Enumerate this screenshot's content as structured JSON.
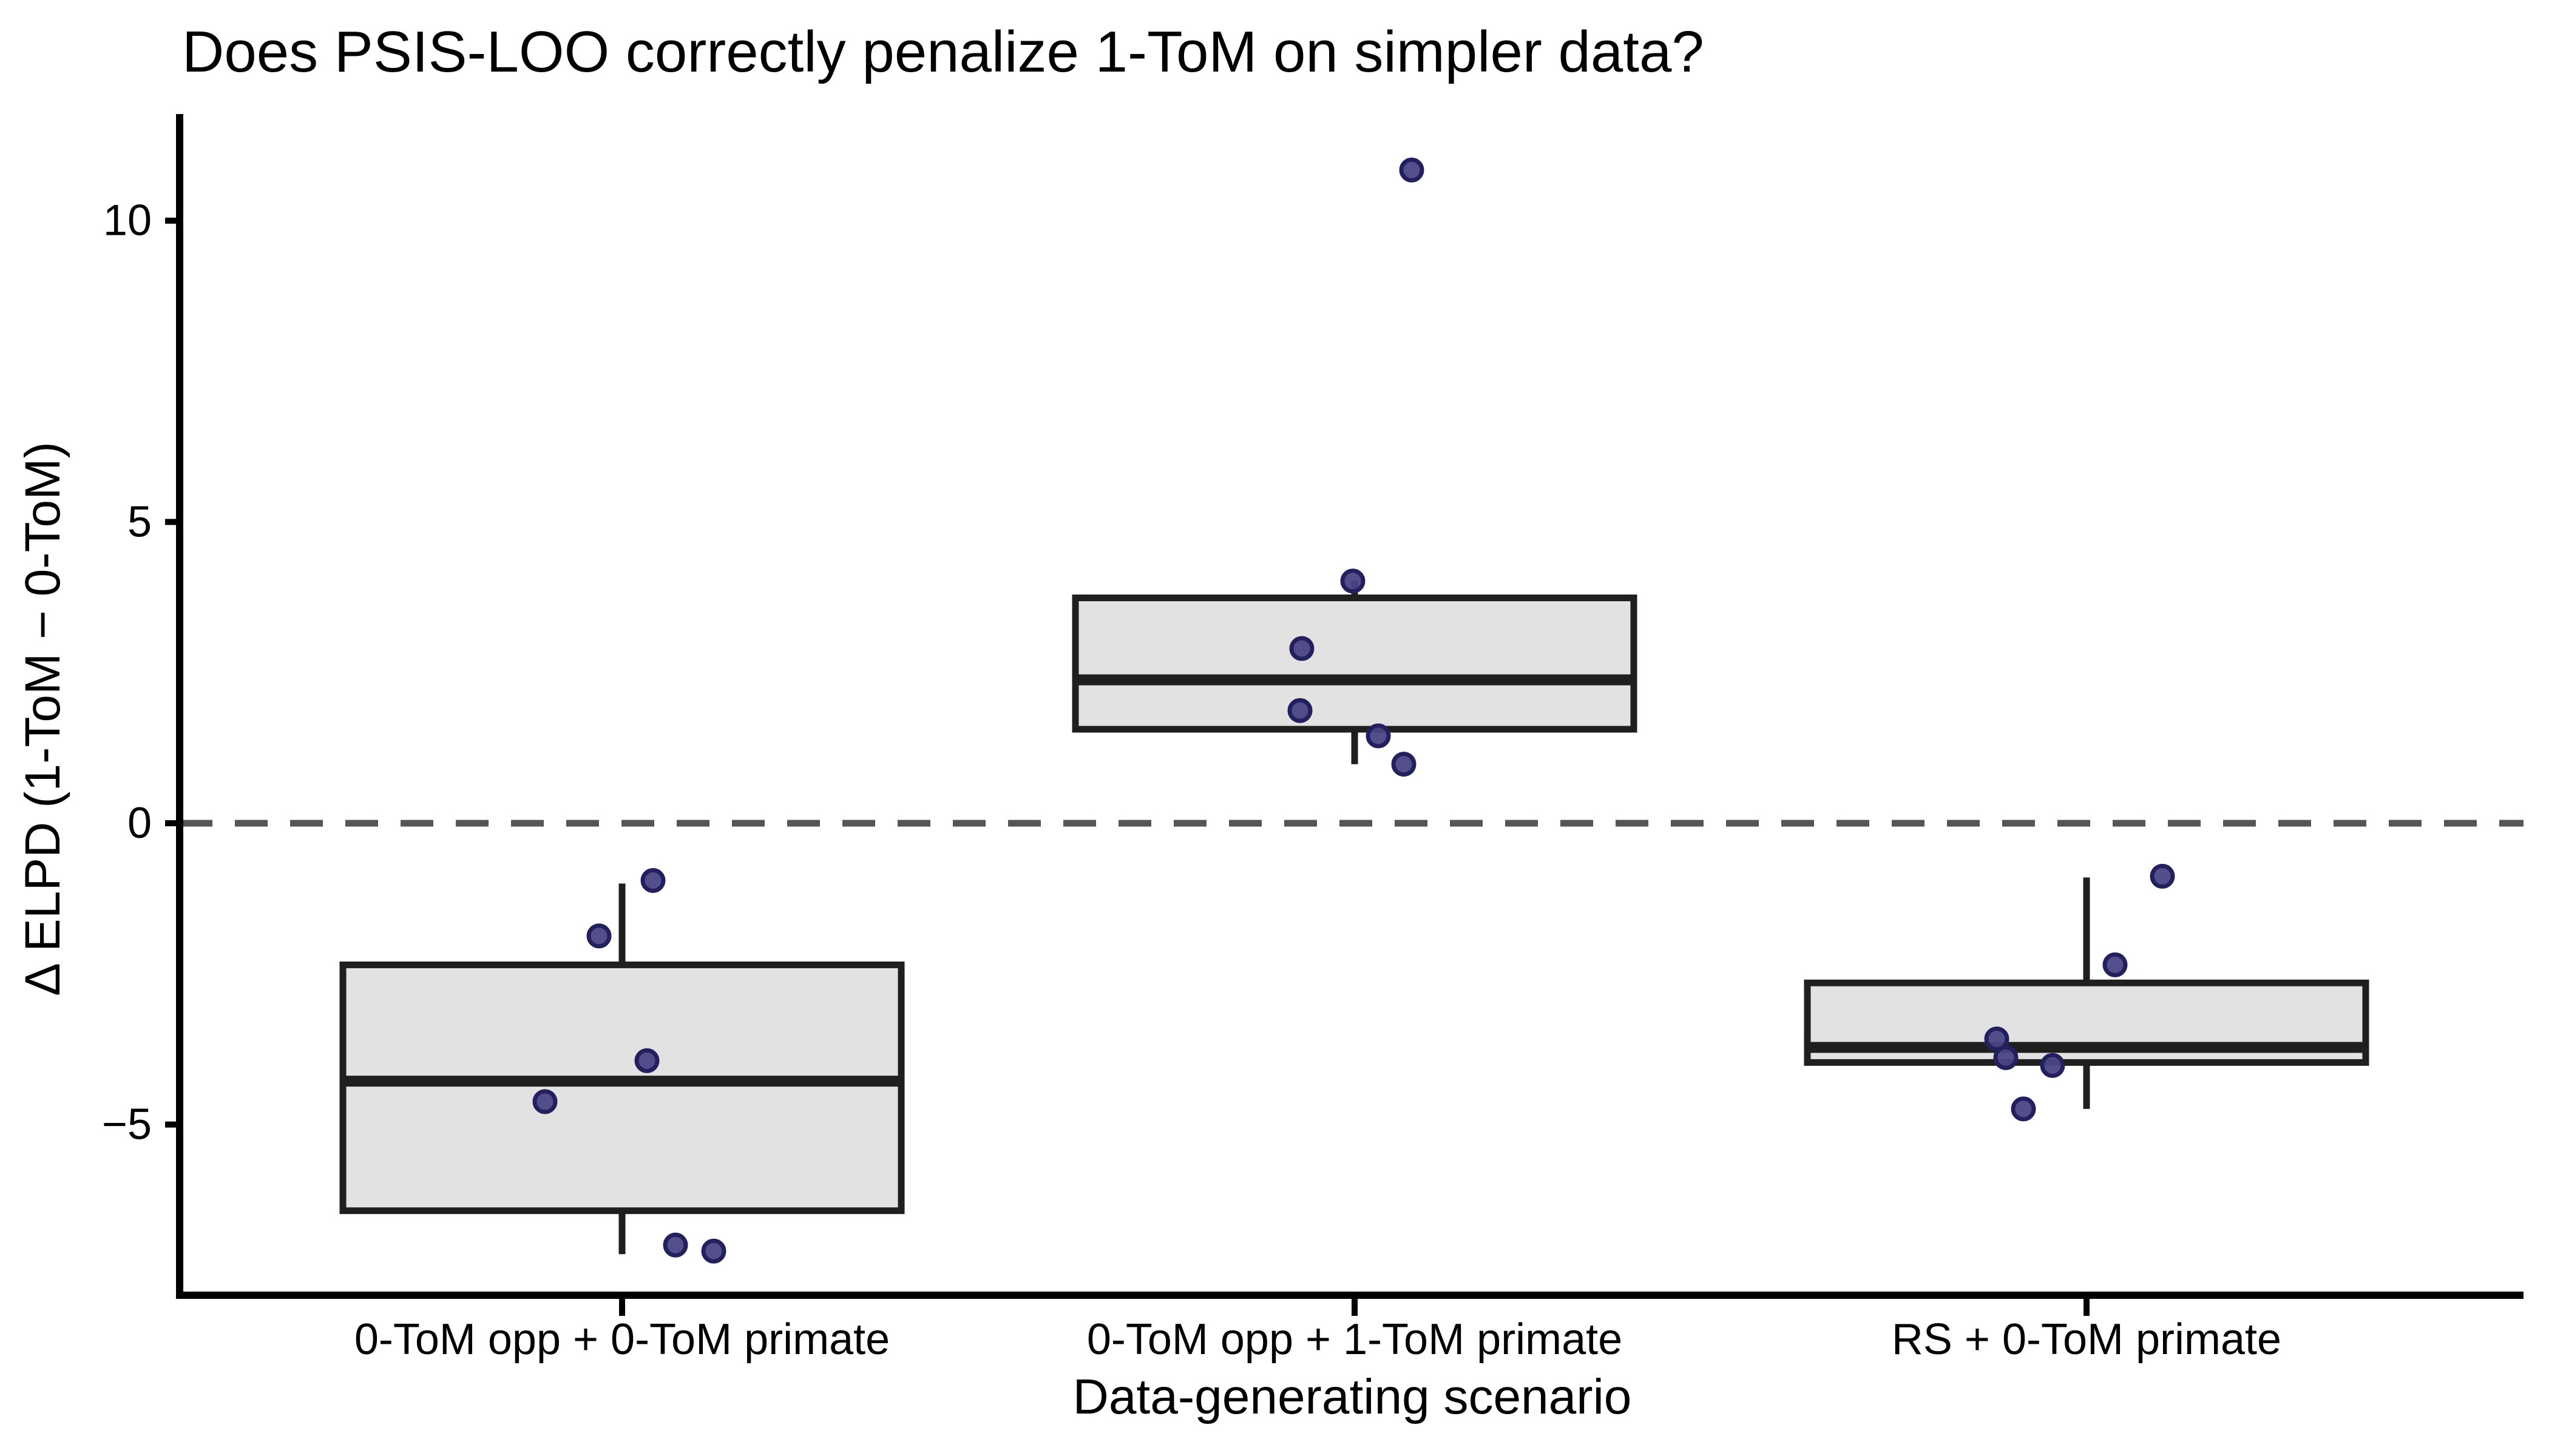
{
  "chart_data": {
    "type": "boxplot",
    "title": "Does PSIS-LOO correctly penalize 1-ToM on simpler data?",
    "xlabel": "Data-generating scenario",
    "ylabel": "Δ ELPD (1-ToM − 0-ToM)",
    "ylim": [
      -7.8,
      11.8
    ],
    "grid": false,
    "legend": "none",
    "y_ticks": [
      {
        "value": 10,
        "label": "10"
      },
      {
        "value": 5,
        "label": "5"
      },
      {
        "value": 0,
        "label": "0"
      },
      {
        "value": -5,
        "label": "−5"
      }
    ],
    "zero_line": {
      "value": 0,
      "style": "dashed"
    },
    "categories": [
      "0-ToM opp + 0-ToM primate",
      "0-ToM opp + 1-ToM primate",
      "RS + 0-ToM primate"
    ],
    "series": [
      {
        "category": "0-ToM opp + 0-ToM primate",
        "whisker_low": -7.15,
        "q1": -6.43,
        "median": -4.28,
        "q3": -2.35,
        "whisker_high": -1.0,
        "points": [
          {
            "value": -0.95,
            "jitter": 51
          },
          {
            "value": -1.87,
            "jitter": -38
          },
          {
            "value": -3.94,
            "jitter": 41
          },
          {
            "value": -4.62,
            "jitter": -127
          },
          {
            "value": -7.0,
            "jitter": 88
          },
          {
            "value": -7.1,
            "jitter": 151
          }
        ]
      },
      {
        "category": "0-ToM opp + 1-ToM primate",
        "whisker_low": 0.98,
        "q1": 1.56,
        "median": 2.38,
        "q3": 3.74,
        "whisker_high": 4.03,
        "points": [
          {
            "value": 10.84,
            "jitter": 94
          },
          {
            "value": 4.02,
            "jitter": -3
          },
          {
            "value": 2.9,
            "jitter": -87
          },
          {
            "value": 1.87,
            "jitter": -90
          },
          {
            "value": 1.45,
            "jitter": 39
          },
          {
            "value": 0.98,
            "jitter": 81
          }
        ]
      },
      {
        "category": "RS + 0-ToM primate",
        "whisker_low": -4.74,
        "q1": -3.97,
        "median": -3.72,
        "q3": -2.65,
        "whisker_high": -0.9,
        "points": [
          {
            "value": -0.88,
            "jitter": 125
          },
          {
            "value": -2.35,
            "jitter": 47
          },
          {
            "value": -3.58,
            "jitter": -148
          },
          {
            "value": -3.89,
            "jitter": -133
          },
          {
            "value": -4.02,
            "jitter": -56
          },
          {
            "value": -4.74,
            "jitter": -104
          }
        ]
      }
    ],
    "colors": {
      "box_fill": "#e2e2e2",
      "box_stroke": "#1f1f1f",
      "median_stroke": "#1f1f1f",
      "whisker_stroke": "#1f1f1f",
      "point_fill": "#4a4486",
      "point_stroke": "#24205e",
      "zero_line": "#555555",
      "axis": "#000000",
      "text": "#000000"
    }
  }
}
